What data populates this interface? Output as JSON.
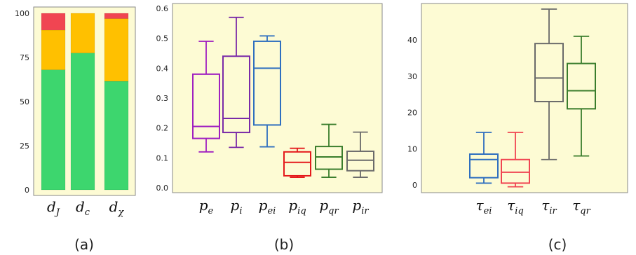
{
  "chart_data": [
    {
      "type": "bar",
      "stacked": true,
      "caption": "(a)",
      "background": "#fdfbd4",
      "categories": [
        "d_J",
        "d_c",
        "d_X"
      ],
      "category_labels": [
        {
          "base": "d",
          "sub": "J"
        },
        {
          "base": "d",
          "sub": "c"
        },
        {
          "base": "d",
          "sub": "χ"
        }
      ],
      "ylim": [
        0,
        100
      ],
      "yticks": [
        0,
        25,
        50,
        75,
        100
      ],
      "series": [
        {
          "values": [
            68,
            77.5,
            61.5
          ],
          "color": "#3dd66e"
        },
        {
          "values": [
            22.5,
            22.5,
            35.5
          ],
          "color": "#ffc000"
        },
        {
          "values": [
            9.5,
            0,
            3
          ],
          "color": "#f04552"
        }
      ]
    },
    {
      "type": "box",
      "caption": "(b)",
      "background": "#fdfbd4",
      "ylim": [
        -0.02,
        0.61
      ],
      "yticks": [
        "0.0",
        "0.1",
        "0.2",
        "0.3",
        "0.4",
        "0.5",
        "0.6"
      ],
      "boxes": [
        {
          "label": {
            "base": "p",
            "sub": "e"
          },
          "color": "#a020c0",
          "min": 0.12,
          "q1": 0.165,
          "median": 0.205,
          "q3": 0.38,
          "max": 0.49
        },
        {
          "label": {
            "base": "p",
            "sub": "i"
          },
          "color": "#7a2aa8",
          "min": 0.135,
          "q1": 0.185,
          "median": 0.232,
          "q3": 0.44,
          "max": 0.57
        },
        {
          "label": {
            "base": "p",
            "sub": "ei"
          },
          "color": "#2f6fbf",
          "min": 0.137,
          "q1": 0.21,
          "median": 0.4,
          "q3": 0.49,
          "max": 0.508
        },
        {
          "label": {
            "base": "p",
            "sub": "iq"
          },
          "color": "#e41a1c",
          "min": 0.035,
          "q1": 0.04,
          "median": 0.085,
          "q3": 0.12,
          "max": 0.132
        },
        {
          "label": {
            "base": "p",
            "sub": "qr"
          },
          "color": "#3a7d2c",
          "min": 0.035,
          "q1": 0.062,
          "median": 0.103,
          "q3": 0.138,
          "max": 0.212
        },
        {
          "label": {
            "base": "p",
            "sub": "ir"
          },
          "color": "#6a6a6a",
          "min": 0.035,
          "q1": 0.057,
          "median": 0.092,
          "q3": 0.122,
          "max": 0.186
        }
      ]
    },
    {
      "type": "box",
      "caption": "(c)",
      "background": "#fdfbd4",
      "ylim": [
        -1.5,
        49.5
      ],
      "yticks": [
        "0",
        "10",
        "20",
        "30",
        "40"
      ],
      "boxes": [
        {
          "label": {
            "base": "τ",
            "sub": "ei"
          },
          "color": "#2f6fbf",
          "min": 0.5,
          "q1": 2,
          "median": 7,
          "q3": 8.5,
          "max": 14.5
        },
        {
          "label": {
            "base": "τ",
            "sub": "iq"
          },
          "color": "#f04552",
          "min": -0.5,
          "q1": 0.5,
          "median": 3.5,
          "q3": 7,
          "max": 14.5
        },
        {
          "label": {
            "base": "τ",
            "sub": "ir"
          },
          "color": "#6a6a6a",
          "min": 7,
          "q1": 23,
          "median": 29.5,
          "q3": 39,
          "max": 48.5
        },
        {
          "label": {
            "base": "τ",
            "sub": "qr"
          },
          "color": "#3a7d2c",
          "min": 8,
          "q1": 21,
          "median": 26,
          "q3": 33.5,
          "max": 41
        }
      ]
    }
  ]
}
